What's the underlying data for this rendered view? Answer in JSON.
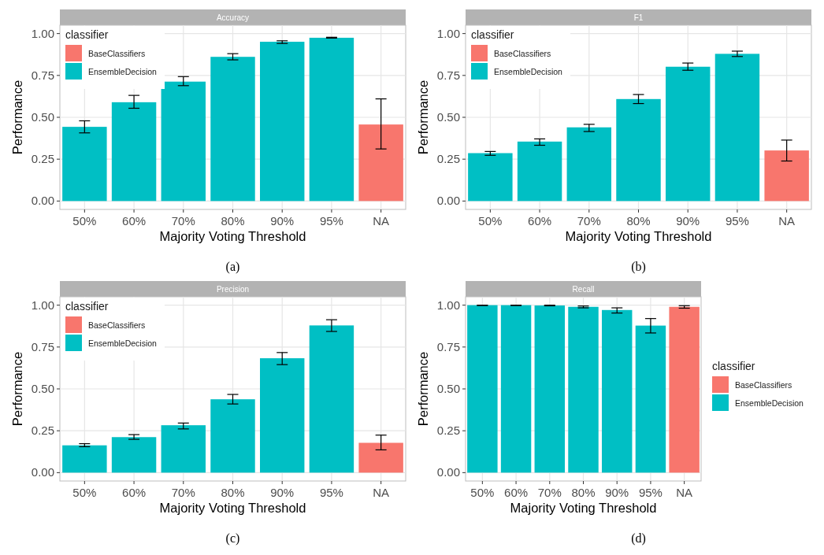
{
  "chart_data": [
    {
      "type": "bar",
      "title": "Accuracy",
      "xlabel": "Majority Voting Threshold",
      "ylabel": "Performance",
      "legend_title": "classifier",
      "legend": "top left",
      "grid": true,
      "annotations": [
        "(a)"
      ],
      "categories": [
        "50%",
        "60%",
        "70%",
        "80%",
        "90%",
        "95%",
        "NA"
      ],
      "ylim": [
        -0.05,
        1.05
      ],
      "yticks": [
        {
          "value": 0,
          "label": "0.00"
        },
        {
          "value": 0.25,
          "label": "0.25"
        },
        {
          "value": 0.5,
          "label": "0.50"
        },
        {
          "value": 0.75,
          "label": "0.75"
        },
        {
          "value": 1,
          "label": "1.00"
        }
      ],
      "series": [
        {
          "name": "BaseClassifiers",
          "color": "#f8766d",
          "values": [
            null,
            null,
            null,
            null,
            null,
            null,
            0.457
          ],
          "errors": [
            null,
            null,
            null,
            null,
            null,
            null,
            [
              0.311,
              0.61
            ]
          ]
        },
        {
          "name": "EnsembleDecision",
          "color": "#00bfc4",
          "values": [
            0.443,
            0.59,
            0.713,
            0.861,
            0.951,
            0.975,
            null
          ],
          "errors": [
            [
              0.407,
              0.479
            ],
            [
              0.554,
              0.631
            ],
            [
              0.689,
              0.743
            ],
            [
              0.843,
              0.88
            ],
            [
              0.941,
              0.957
            ],
            [
              0.973,
              0.978
            ],
            null
          ]
        }
      ]
    },
    {
      "type": "bar",
      "title": "F1",
      "xlabel": "Majority Voting Threshold",
      "ylabel": "Performance",
      "legend_title": "classifier",
      "legend": "top left",
      "grid": true,
      "annotations": [
        "(b)"
      ],
      "categories": [
        "50%",
        "60%",
        "70%",
        "80%",
        "90%",
        "95%",
        "NA"
      ],
      "ylim": [
        -0.05,
        1.05
      ],
      "yticks": [
        {
          "value": 0,
          "label": "0.00"
        },
        {
          "value": 0.25,
          "label": "0.25"
        },
        {
          "value": 0.5,
          "label": "0.50"
        },
        {
          "value": 0.75,
          "label": "0.75"
        },
        {
          "value": 1,
          "label": "1.00"
        }
      ],
      "series": [
        {
          "name": "BaseClassifiers",
          "color": "#f8766d",
          "values": [
            null,
            null,
            null,
            null,
            null,
            null,
            0.302
          ],
          "errors": [
            null,
            null,
            null,
            null,
            null,
            null,
            [
              0.239,
              0.364
            ]
          ]
        },
        {
          "name": "EnsembleDecision",
          "color": "#00bfc4",
          "values": [
            0.286,
            0.355,
            0.44,
            0.609,
            0.802,
            0.879,
            null
          ],
          "errors": [
            [
              0.273,
              0.296
            ],
            [
              0.333,
              0.371
            ],
            [
              0.415,
              0.458
            ],
            [
              0.582,
              0.636
            ],
            [
              0.781,
              0.824
            ],
            [
              0.863,
              0.895
            ],
            null
          ]
        }
      ]
    },
    {
      "type": "bar",
      "title": "Precision",
      "xlabel": "Majority Voting Threshold",
      "ylabel": "Performance",
      "legend_title": "classifier",
      "legend": "top left",
      "grid": true,
      "annotations": [
        "(c)"
      ],
      "categories": [
        "50%",
        "60%",
        "70%",
        "80%",
        "90%",
        "95%",
        "NA"
      ],
      "ylim": [
        -0.05,
        1.05
      ],
      "yticks": [
        {
          "value": 0,
          "label": "0.00"
        },
        {
          "value": 0.25,
          "label": "0.25"
        },
        {
          "value": 0.5,
          "label": "0.50"
        },
        {
          "value": 0.75,
          "label": "0.75"
        },
        {
          "value": 1,
          "label": "1.00"
        }
      ],
      "series": [
        {
          "name": "BaseClassifiers",
          "color": "#f8766d",
          "values": [
            null,
            null,
            null,
            null,
            null,
            null,
            0.178
          ],
          "errors": [
            null,
            null,
            null,
            null,
            null,
            null,
            [
              0.136,
              0.224
            ]
          ]
        },
        {
          "name": "EnsembleDecision",
          "color": "#00bfc4",
          "values": [
            0.163,
            0.212,
            0.283,
            0.438,
            0.683,
            0.879,
            null
          ],
          "errors": [
            [
              0.155,
              0.173
            ],
            [
              0.199,
              0.227
            ],
            [
              0.261,
              0.296
            ],
            [
              0.41,
              0.467
            ],
            [
              0.645,
              0.717
            ],
            [
              0.843,
              0.913
            ],
            null
          ]
        }
      ]
    },
    {
      "type": "bar",
      "title": "Recall",
      "xlabel": "Majority Voting Threshold",
      "ylabel": "Performance",
      "legend_title": "classifier",
      "legend": "right",
      "grid": true,
      "annotations": [
        "(d)"
      ],
      "categories": [
        "50%",
        "60%",
        "70%",
        "80%",
        "90%",
        "95%",
        "NA"
      ],
      "ylim": [
        -0.05,
        1.05
      ],
      "yticks": [
        {
          "value": 0,
          "label": "0.00"
        },
        {
          "value": 0.25,
          "label": "0.25"
        },
        {
          "value": 0.5,
          "label": "0.50"
        },
        {
          "value": 0.75,
          "label": "0.75"
        },
        {
          "value": 1,
          "label": "1.00"
        }
      ],
      "series": [
        {
          "name": "BaseClassifiers",
          "color": "#f8766d",
          "values": [
            null,
            null,
            null,
            null,
            null,
            null,
            0.99
          ],
          "errors": [
            null,
            null,
            null,
            null,
            null,
            null,
            [
              0.982,
              0.997
            ]
          ]
        },
        {
          "name": "EnsembleDecision",
          "color": "#00bfc4",
          "values": [
            1.0,
            1.0,
            0.998,
            0.99,
            0.971,
            0.878,
            null
          ],
          "errors": [
            [
              0.998,
              1.0
            ],
            [
              0.998,
              1.0
            ],
            [
              0.996,
              1.0
            ],
            [
              0.984,
              0.995
            ],
            [
              0.953,
              0.984
            ],
            [
              0.834,
              0.92
            ],
            null
          ]
        }
      ]
    }
  ]
}
